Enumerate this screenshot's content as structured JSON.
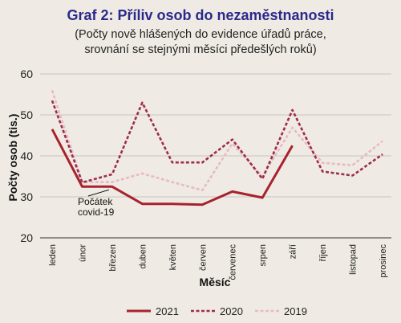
{
  "chart_data": {
    "type": "line",
    "title": "Graf 2: Příliv osob do nezaměstnanosti",
    "subtitle_lines": [
      "(Počty nově hlášených do evidence úřadů práce,",
      "srovnání se stejnými měsíci předešlých roků)"
    ],
    "xlabel": "Měsíc",
    "ylabel": "Počty osob (tis.)",
    "ylim": [
      20,
      60
    ],
    "yticks": [
      20,
      30,
      40,
      50,
      60
    ],
    "categories": [
      "leden",
      "únor",
      "březen",
      "duben",
      "květen",
      "červen",
      "červenec",
      "srpen",
      "září",
      "říjen",
      "listopad",
      "prosinec"
    ],
    "series": [
      {
        "name": "2021",
        "color": "#a8222e",
        "style": "solid",
        "values": [
          46.5,
          32.5,
          32.5,
          28.3,
          28.3,
          28.1,
          31.3,
          29.8,
          42.5,
          null,
          null,
          null
        ]
      },
      {
        "name": "2020",
        "color": "#9e2d4a",
        "style": "dashed",
        "values": [
          53.5,
          33.5,
          35.5,
          53.0,
          38.4,
          38.4,
          44.0,
          34.4,
          51.2,
          36.2,
          35.2,
          40.4
        ]
      },
      {
        "name": "2019",
        "color": "#e8b9c8",
        "style": "dashed",
        "values": [
          56.0,
          33.6,
          33.6,
          35.7,
          33.6,
          31.6,
          43.0,
          35.0,
          46.9,
          38.3,
          37.7,
          43.6
        ]
      }
    ],
    "annotation": {
      "lines": [
        "Počátek",
        "covid-19"
      ],
      "at_category": "březen",
      "at_value": 32.5
    },
    "legend_position": "bottom",
    "grid": "horizontal"
  }
}
